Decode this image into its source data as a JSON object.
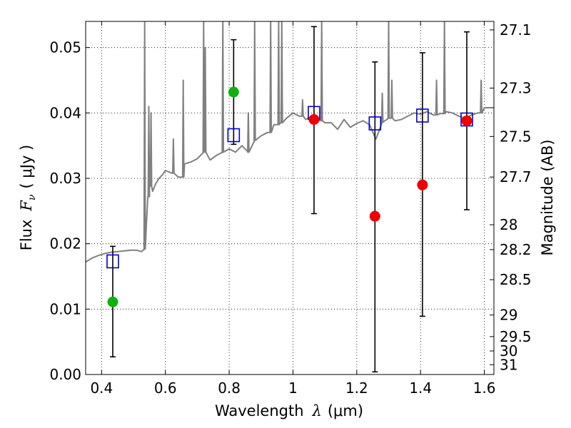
{
  "chart_data": {
    "type": "scatter",
    "xlabel": "Wavelength",
    "xlabel_symbol": "λ",
    "xlabel_unit": "(μm)",
    "ylabel": "Flux",
    "ylabel_symbol": "F",
    "ylabel_sub": "ν",
    "ylabel_unit": "( μJy )",
    "y2label": "Magnitude (AB)",
    "xlim": [
      0.35,
      1.63
    ],
    "ylim": [
      0.0,
      0.054
    ],
    "grid": true,
    "x_ticks": [
      0.4,
      0.6,
      0.8,
      1.0,
      1.2,
      1.4,
      1.6
    ],
    "x_tick_labels": [
      "0.4",
      "0.6",
      "0.8",
      "1",
      "1.2",
      "1.4",
      "1.6"
    ],
    "y_ticks": [
      0.0,
      0.01,
      0.02,
      0.03,
      0.04,
      0.05
    ],
    "y_tick_labels": [
      "0.00",
      "0.01",
      "0.02",
      "0.03",
      "0.04",
      "0.05"
    ],
    "y2_ticks": [
      {
        "label": "27.1",
        "flux": 0.0527
      },
      {
        "label": "27.3",
        "flux": 0.0438
      },
      {
        "label": "27.5",
        "flux": 0.0364
      },
      {
        "label": "27.7",
        "flux": 0.0302
      },
      {
        "label": "28",
        "flux": 0.0229
      },
      {
        "label": "28.2",
        "flux": 0.0191
      },
      {
        "label": "28.5",
        "flux": 0.0145
      },
      {
        "label": "29",
        "flux": 0.0091
      },
      {
        "label": "29.5",
        "flux": 0.0058
      },
      {
        "label": "30",
        "flux": 0.0036
      },
      {
        "label": "31",
        "flux": 0.0015
      }
    ],
    "series": [
      {
        "kind": "line",
        "color": "#808080",
        "x": [
          0.35,
          0.37,
          0.39,
          0.41,
          0.43,
          0.45,
          0.47,
          0.49,
          0.51,
          0.525,
          0.535,
          0.54,
          0.545,
          0.55,
          0.56,
          0.57,
          0.58,
          0.59,
          0.6,
          0.62,
          0.64,
          0.66,
          0.68,
          0.7,
          0.72,
          0.74,
          0.76,
          0.78,
          0.8,
          0.82,
          0.84,
          0.86,
          0.88,
          0.9,
          0.92,
          0.94,
          0.96,
          0.98,
          1.0,
          1.02,
          1.04,
          1.06,
          1.08,
          1.1,
          1.12,
          1.14,
          1.16,
          1.18,
          1.2,
          1.22,
          1.24,
          1.26,
          1.28,
          1.3,
          1.32,
          1.34,
          1.36,
          1.38,
          1.4,
          1.42,
          1.44,
          1.46,
          1.48,
          1.5,
          1.52,
          1.54,
          1.56,
          1.58,
          1.6,
          1.63
        ],
        "y": [
          0.0172,
          0.0178,
          0.0182,
          0.0185,
          0.0187,
          0.0188,
          0.0189,
          0.019,
          0.019,
          0.0188,
          0.0192,
          0.0225,
          0.0272,
          0.0288,
          0.028,
          0.0292,
          0.03,
          0.0305,
          0.0312,
          0.0308,
          0.0302,
          0.0322,
          0.0325,
          0.033,
          0.034,
          0.0328,
          0.0335,
          0.034,
          0.0345,
          0.034,
          0.035,
          0.034,
          0.0358,
          0.0365,
          0.037,
          0.0382,
          0.0385,
          0.0392,
          0.04,
          0.0395,
          0.039,
          0.0395,
          0.0388,
          0.0385,
          0.0385,
          0.0375,
          0.039,
          0.0378,
          0.0384,
          0.0388,
          0.0382,
          0.036,
          0.0386,
          0.0392,
          0.0388,
          0.039,
          0.0395,
          0.04,
          0.0398,
          0.0402,
          0.0397,
          0.0399,
          0.0402,
          0.04,
          0.0395,
          0.0392,
          0.0397,
          0.04,
          0.0408,
          0.0408
        ],
        "spikes": [
          {
            "x": 0.535,
            "y": 0.054
          },
          {
            "x": 0.548,
            "y": 0.041
          },
          {
            "x": 0.555,
            "y": 0.04
          },
          {
            "x": 0.625,
            "y": 0.036
          },
          {
            "x": 0.656,
            "y": 0.045
          },
          {
            "x": 0.72,
            "y": 0.054
          },
          {
            "x": 0.725,
            "y": 0.05
          },
          {
            "x": 0.78,
            "y": 0.054
          },
          {
            "x": 0.86,
            "y": 0.04
          },
          {
            "x": 0.88,
            "y": 0.054
          },
          {
            "x": 0.93,
            "y": 0.054
          },
          {
            "x": 0.955,
            "y": 0.054
          },
          {
            "x": 0.965,
            "y": 0.054
          },
          {
            "x": 1.03,
            "y": 0.042
          },
          {
            "x": 1.09,
            "y": 0.054
          },
          {
            "x": 1.28,
            "y": 0.043
          },
          {
            "x": 1.3,
            "y": 0.054
          },
          {
            "x": 1.31,
            "y": 0.045
          },
          {
            "x": 1.45,
            "y": 0.045
          },
          {
            "x": 1.475,
            "y": 0.054
          },
          {
            "x": 1.59,
            "y": 0.045
          }
        ]
      },
      {
        "kind": "errorbars",
        "color": "#000000",
        "points": [
          {
            "x": 0.435,
            "lo": 0.0027,
            "hi": 0.0196
          },
          {
            "x": 0.814,
            "lo": 0.0352,
            "hi": 0.0512
          },
          {
            "x": 1.066,
            "lo": 0.0246,
            "hi": 0.0532
          },
          {
            "x": 1.257,
            "lo": 0.0004,
            "hi": 0.0478
          },
          {
            "x": 1.406,
            "lo": 0.0089,
            "hi": 0.0492
          },
          {
            "x": 1.545,
            "lo": 0.0252,
            "hi": 0.0524
          }
        ]
      },
      {
        "kind": "markers-square",
        "color": "#0000cc",
        "x": [
          0.435,
          0.814,
          1.066,
          1.257,
          1.406,
          1.545
        ],
        "y": [
          0.0173,
          0.0366,
          0.04,
          0.0384,
          0.0396,
          0.039
        ]
      },
      {
        "kind": "markers-circle",
        "color": "#10b010",
        "x": [
          0.435,
          0.814
        ],
        "y": [
          0.0111,
          0.0432
        ]
      },
      {
        "kind": "markers-circle",
        "color": "#ee0000",
        "x": [
          1.066,
          1.257,
          1.406,
          1.545
        ],
        "y": [
          0.039,
          0.0242,
          0.029,
          0.0388
        ]
      }
    ]
  }
}
